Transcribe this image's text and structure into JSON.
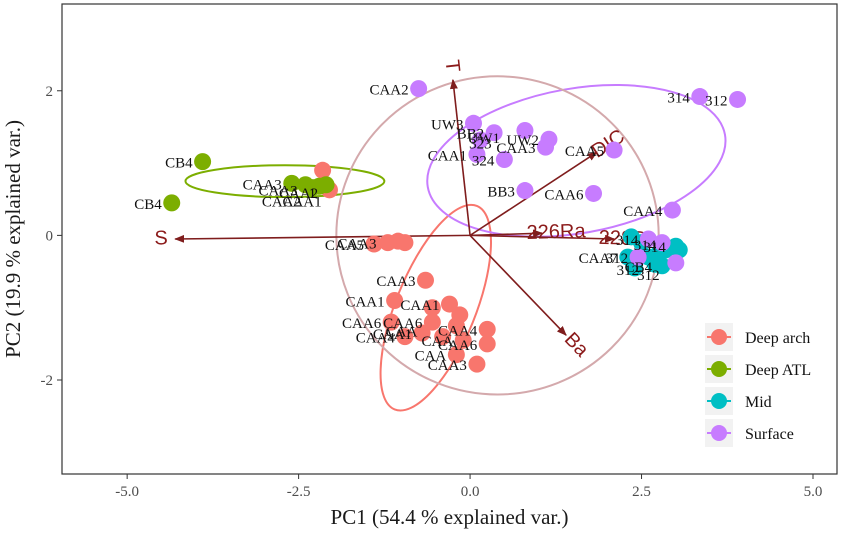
{
  "chart_data": {
    "type": "scatter",
    "title": "",
    "xlabel": "PC1 (54.4 % explained var.)",
    "ylabel": "PC2 (19.9 % explained var.)",
    "xlim": [
      -5.95,
      5.35
    ],
    "ylim": [
      -3.3,
      3.2
    ],
    "x_ticks": [
      -5.0,
      -2.5,
      0.0,
      2.5,
      5.0
    ],
    "x_tick_labels": [
      "-5.0",
      "-2.5",
      "0.0",
      "2.5",
      "5.0"
    ],
    "y_ticks": [
      2,
      0,
      -2
    ],
    "y_tick_labels": [
      "2",
      "0",
      "-2"
    ],
    "grid": false,
    "legend_position": "bottom-right",
    "series": [
      {
        "name": "Deep arch",
        "color": "#F8766D",
        "points": [
          {
            "x": -2.15,
            "y": 0.9,
            "label": ""
          },
          {
            "x": -2.05,
            "y": 0.63,
            "label": ""
          },
          {
            "x": -1.4,
            "y": -0.12,
            "label": "CAA5"
          },
          {
            "x": -1.2,
            "y": -0.1,
            "label": ""
          },
          {
            "x": -1.05,
            "y": -0.08,
            "label": ""
          },
          {
            "x": -0.95,
            "y": -0.1,
            "label": ""
          },
          {
            "x": -0.65,
            "y": -0.62,
            "label": "CAA3"
          },
          {
            "x": -1.1,
            "y": -0.9,
            "label": "CAA1"
          },
          {
            "x": -0.55,
            "y": -1.0,
            "label": ""
          },
          {
            "x": -0.3,
            "y": -0.95,
            "label": "CAA1"
          },
          {
            "x": -0.15,
            "y": -1.1,
            "label": ""
          },
          {
            "x": -1.15,
            "y": -1.2,
            "label": "CAA6"
          },
          {
            "x": -0.55,
            "y": -1.2,
            "label": "CAA6"
          },
          {
            "x": -0.2,
            "y": -1.25,
            "label": ""
          },
          {
            "x": 0.25,
            "y": -1.3,
            "label": "CAA4"
          },
          {
            "x": -0.95,
            "y": -1.4,
            "label": "CAA4"
          },
          {
            "x": -0.7,
            "y": -1.35,
            "label": "CAA1"
          },
          {
            "x": -0.4,
            "y": -1.4,
            "label": ""
          },
          {
            "x": -0.1,
            "y": -1.45,
            "label": "CAA"
          },
          {
            "x": 0.25,
            "y": -1.5,
            "label": "CAA6"
          },
          {
            "x": -0.2,
            "y": -1.65,
            "label": "CAA"
          },
          {
            "x": 0.1,
            "y": -1.78,
            "label": "CAA3"
          }
        ]
      },
      {
        "name": "Deep ATL",
        "color": "#7CAE00",
        "points": [
          {
            "x": -3.9,
            "y": 1.02,
            "label": "CB4"
          },
          {
            "x": -4.35,
            "y": 0.45,
            "label": "CB4"
          },
          {
            "x": -2.6,
            "y": 0.72,
            "label": "CAA3"
          },
          {
            "x": -2.4,
            "y": 0.7,
            "label": ""
          },
          {
            "x": -2.3,
            "y": 0.66,
            "label": ""
          },
          {
            "x": -2.2,
            "y": 0.68,
            "label": ""
          },
          {
            "x": -2.1,
            "y": 0.7,
            "label": ""
          }
        ]
      },
      {
        "name": "Mid",
        "color": "#00BFC4",
        "points": [
          {
            "x": 2.35,
            "y": -0.02,
            "label": ""
          },
          {
            "x": 2.5,
            "y": -0.1,
            "label": ""
          },
          {
            "x": 2.3,
            "y": -0.3,
            "label": "CAA7"
          },
          {
            "x": 2.6,
            "y": -0.3,
            "label": ""
          },
          {
            "x": 2.75,
            "y": -0.25,
            "label": ""
          },
          {
            "x": 2.85,
            "y": -0.2,
            "label": ""
          },
          {
            "x": 3.0,
            "y": -0.15,
            "label": "314"
          },
          {
            "x": 3.05,
            "y": -0.2,
            "label": ""
          },
          {
            "x": 2.4,
            "y": -0.45,
            "label": ""
          },
          {
            "x": 2.7,
            "y": -0.4,
            "label": ""
          },
          {
            "x": 2.8,
            "y": -0.42,
            "label": "CB4"
          }
        ]
      },
      {
        "name": "Surface",
        "color": "#C77CFF",
        "points": [
          {
            "x": -0.75,
            "y": 2.03,
            "label": "CAA2"
          },
          {
            "x": 3.35,
            "y": 1.92,
            "label": "314"
          },
          {
            "x": 3.9,
            "y": 1.88,
            "label": "312"
          },
          {
            "x": 0.05,
            "y": 1.55,
            "label": "UW3"
          },
          {
            "x": 0.15,
            "y": 1.32,
            "label": ""
          },
          {
            "x": 0.35,
            "y": 1.42,
            "label": "BB2"
          },
          {
            "x": 0.8,
            "y": 1.45,
            "label": ""
          },
          {
            "x": 1.15,
            "y": 1.33,
            "label": "UW2"
          },
          {
            "x": 1.1,
            "y": 1.22,
            "label": "CAA3"
          },
          {
            "x": 0.1,
            "y": 1.12,
            "label": "CAA1"
          },
          {
            "x": 0.5,
            "y": 1.05,
            "label": "324"
          },
          {
            "x": 2.1,
            "y": 1.18,
            "label": "CAA5"
          },
          {
            "x": 0.8,
            "y": 0.62,
            "label": "BB3"
          },
          {
            "x": 1.8,
            "y": 0.58,
            "label": "CAA6"
          },
          {
            "x": 2.95,
            "y": 0.35,
            "label": "CAA4"
          },
          {
            "x": 2.6,
            "y": -0.05,
            "label": "314"
          },
          {
            "x": 2.8,
            "y": -0.1,
            "label": ""
          },
          {
            "x": 3.0,
            "y": -0.38,
            "label": ""
          },
          {
            "x": 2.45,
            "y": -0.3,
            "label": "312"
          }
        ]
      }
    ],
    "extra_labels": [
      {
        "x": -2.8,
        "y": 0.55,
        "text": "CAA3"
      },
      {
        "x": -2.5,
        "y": 0.52,
        "text": "CAA2"
      },
      {
        "x": -2.3,
        "y": 0.52,
        "text": "1"
      },
      {
        "x": -2.75,
        "y": 0.4,
        "text": "CAA2"
      },
      {
        "x": -2.45,
        "y": 0.4,
        "text": "CAA1"
      },
      {
        "x": -1.65,
        "y": -0.18,
        "text": "CAA3"
      },
      {
        "x": -1.0,
        "y": -1.4,
        "text": "CAA"
      },
      {
        "x": 2.3,
        "y": -0.55,
        "text": "312"
      },
      {
        "x": 2.6,
        "y": -0.62,
        "text": "312"
      },
      {
        "x": 2.55,
        "y": -0.2,
        "text": "314"
      },
      {
        "x": 0.2,
        "y": 1.28,
        "text": "UW1"
      },
      {
        "x": 0.15,
        "y": 1.2,
        "text": "323"
      }
    ],
    "loadings": [
      {
        "name": "T",
        "x": -0.25,
        "y": 2.15
      },
      {
        "name": "DIC",
        "x": 1.85,
        "y": 1.15
      },
      {
        "name": "226Ra",
        "x": 1.05,
        "y": 0.03
      },
      {
        "name": "228Ra",
        "x": 2.1,
        "y": -0.05
      },
      {
        "name": "S",
        "x": -4.3,
        "y": -0.05
      },
      {
        "name": "Ba",
        "x": 1.4,
        "y": -1.38
      }
    ],
    "ellipses": [
      {
        "series": "Deep arch",
        "cx": -0.5,
        "cy": -1.0,
        "rx": 1.6,
        "ry": 0.55,
        "angle": -68
      },
      {
        "series": "Deep ATL",
        "cx": -2.7,
        "cy": 0.75,
        "rx": 1.45,
        "ry": 0.22,
        "angle": 0
      },
      {
        "series": "Surface",
        "cx": 1.55,
        "cy": 1.03,
        "rx": 2.2,
        "ry": 1.0,
        "angle": -10
      },
      {
        "series": "All",
        "cx": 0.4,
        "cy": 0.0,
        "rx": 2.35,
        "ry": 2.2,
        "angle": 0
      }
    ]
  }
}
